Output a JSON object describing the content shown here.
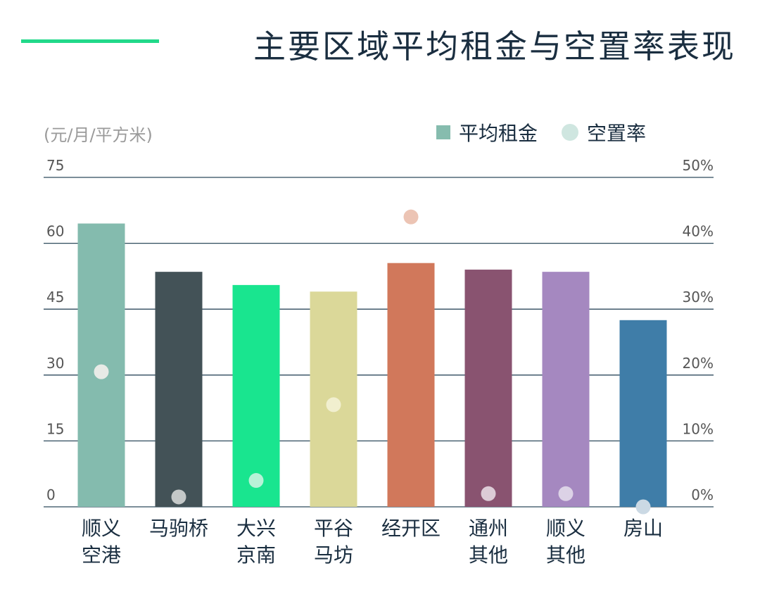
{
  "header": {
    "title": "主要区域平均租金与空置率表现",
    "accent_color": "#22d98a"
  },
  "legend": {
    "rent_label": "平均租金",
    "rent_color": "#86bcae",
    "vacancy_label": "空置率",
    "vacancy_color": "#cfe6e0"
  },
  "chart_data": {
    "type": "bar",
    "title": "主要区域平均租金与空置率表现",
    "ylabel": "(元/月/平方米)",
    "y_left": {
      "ylim": [
        0,
        75
      ],
      "ticks": [
        "0",
        "15",
        "30",
        "45",
        "60",
        "75"
      ]
    },
    "y_right": {
      "ylim": [
        0,
        50
      ],
      "ticks": [
        "0%",
        "10%",
        "20%",
        "30%",
        "40%",
        "50%"
      ]
    },
    "grid": true,
    "legend_position": "top-right",
    "categories": [
      [
        "顺义",
        "空港"
      ],
      [
        "马驹桥"
      ],
      [
        "大兴",
        "京南"
      ],
      [
        "平谷",
        "马坊"
      ],
      [
        "经开区"
      ],
      [
        "通州",
        "其他"
      ],
      [
        "顺义",
        "其他"
      ],
      [
        "房山"
      ]
    ],
    "series": [
      {
        "name": "平均租金",
        "type": "bar",
        "axis": "left",
        "values": [
          64.5,
          53.5,
          50.5,
          49,
          55.5,
          54,
          53.5,
          42.5
        ],
        "colors": [
          "#84bbae",
          "#435257",
          "#19e58f",
          "#dbd899",
          "#d1785b",
          "#895370",
          "#a588c0",
          "#3f7da8"
        ]
      },
      {
        "name": "空置率",
        "type": "scatter",
        "axis": "right",
        "values": [
          20.5,
          1.5,
          4,
          15.5,
          44,
          2,
          2,
          0
        ],
        "colors": [
          "#e8eae6",
          "#c4c8c8",
          "#b8f2d8",
          "#f1efcf",
          "#ecc4b4",
          "#dccbd6",
          "#dcd2e6",
          "#cbd9e4"
        ]
      }
    ]
  }
}
